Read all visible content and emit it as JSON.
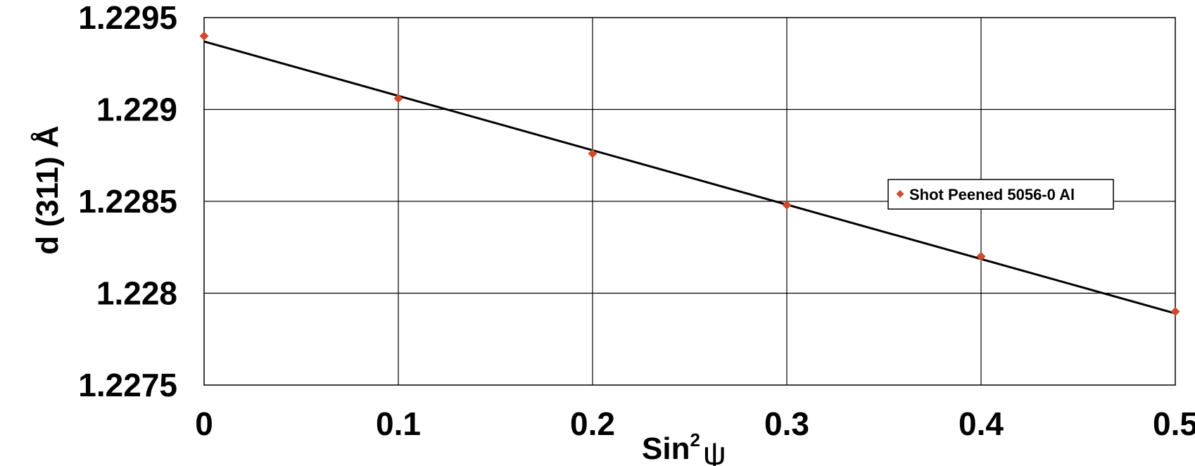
{
  "chart_data": {
    "type": "scatter",
    "x": [
      0,
      0.1,
      0.2,
      0.3,
      0.4,
      0.5
    ],
    "series": [
      {
        "name": "Shot Peened 5056-0 Al",
        "values": [
          1.2294,
          1.22906,
          1.22876,
          1.22848,
          1.2282,
          1.2279
        ],
        "color": "#d04a2c",
        "marker": "diamond"
      }
    ],
    "trendline": {
      "x": [
        0,
        0.5
      ],
      "y": [
        1.22937,
        1.22789
      ],
      "color": "#000000"
    },
    "xlim": [
      0,
      0.5
    ],
    "ylim": [
      1.2275,
      1.2295
    ],
    "x_ticks": [
      "0",
      "0.1",
      "0.2",
      "0.3",
      "0.4",
      "0.5"
    ],
    "y_ticks": [
      "1.2275",
      "1.228",
      "1.2285",
      "1.229",
      "1.2295"
    ],
    "xlabel": {
      "base": "Sin",
      "sup": "2",
      "symbol": "ψ"
    },
    "ylabel": "d (311) Å",
    "grid": true,
    "legend_position": "right"
  }
}
